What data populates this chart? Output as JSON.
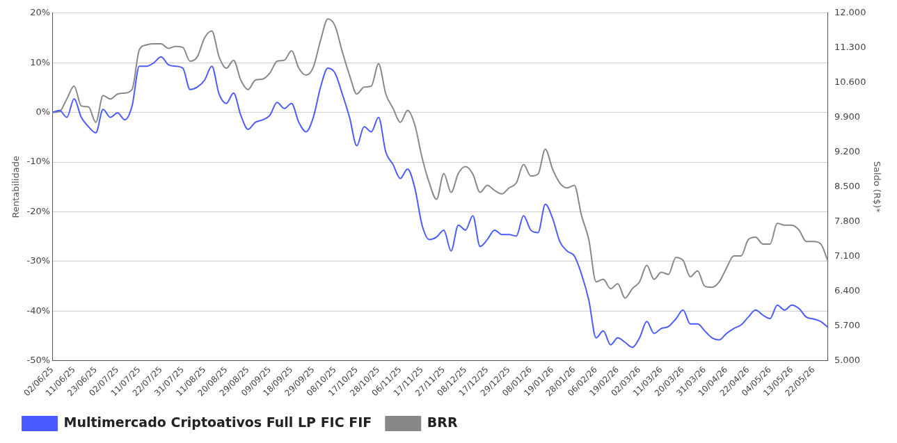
{
  "chart_data": {
    "type": "line",
    "categories": [
      "02/06/25",
      null,
      null,
      "11/06/25",
      null,
      null,
      "23/06/25",
      null,
      null,
      "02/07/25",
      null,
      null,
      "11/07/25",
      null,
      null,
      "22/07/25",
      null,
      null,
      "31/07/25",
      null,
      null,
      "11/08/25",
      null,
      null,
      "20/08/25",
      null,
      null,
      "29/08/25",
      null,
      null,
      "09/09/25",
      null,
      null,
      "18/09/25",
      null,
      null,
      "29/09/25",
      null,
      null,
      "08/10/25",
      null,
      null,
      "17/10/25",
      null,
      null,
      "28/10/25",
      null,
      null,
      "06/11/25",
      null,
      null,
      "17/11/25",
      null,
      null,
      "27/11/25",
      null,
      null,
      "08/12/25",
      null,
      null,
      "17/12/25",
      null,
      null,
      "29/12/25",
      null,
      null,
      "08/01/26",
      null,
      null,
      "19/01/26",
      null,
      null,
      "28/01/26",
      null,
      null,
      "06/02/26",
      null,
      null,
      "19/02/26",
      null,
      null,
      "02/03/26",
      null,
      null,
      "11/03/26",
      null,
      null,
      "20/03/26",
      null,
      null,
      "31/03/26",
      null,
      null,
      "10/04/26",
      null,
      null,
      "22/04/26",
      null,
      null,
      "04/05/26",
      null,
      null,
      "13/05/26",
      null,
      null,
      "22/05/26",
      null,
      null
    ],
    "series": [
      {
        "name": "Multimercado Criptoativos Full LP FIC FIF",
        "color": "#4a5cff",
        "values": [
          0,
          0.4,
          -1,
          2.7,
          -1,
          -2.9,
          -4.1,
          0.6,
          -1,
          -0.1,
          -1.5,
          1.3,
          9.3,
          9.3,
          10,
          11.2,
          9.6,
          9.3,
          8.9,
          4.6,
          5.1,
          6.5,
          9.3,
          3.7,
          1.8,
          3.9,
          -0.6,
          -3.4,
          -2,
          -1.5,
          -0.6,
          2,
          0.8,
          1.8,
          -2,
          -3.9,
          -1,
          5.1,
          8.9,
          7.9,
          3.7,
          -1,
          -6.7,
          -2.9,
          -3.9,
          -1,
          -8,
          -10.5,
          -13.3,
          -11.4,
          -15.2,
          -22.7,
          -25.6,
          -25.1,
          -23.7,
          -27.9,
          -22.7,
          -23.7,
          -20.8,
          -27,
          -25.6,
          -23.7,
          -24.6,
          -24.6,
          -24.9,
          -20.8,
          -23.7,
          -24.2,
          -18.5,
          -21.3,
          -26,
          -27.9,
          -28.9,
          -32.6,
          -37.8,
          -45.4,
          -44,
          -46.8,
          -45.4,
          -46.3,
          -47.3,
          -45.4,
          -42.1,
          -44.5,
          -43.5,
          -43.1,
          -41.6,
          -39.8,
          -42.6,
          -42.6,
          -44,
          -45.4,
          -45.8,
          -44.5,
          -43.5,
          -42.8,
          -41.2,
          -39.8,
          -40.8,
          -41.5,
          -38.8,
          -39.8,
          -38.8,
          -39.5,
          -41.2,
          -41.6,
          -42.1,
          -43.3
        ]
      },
      {
        "name": "BRR",
        "color": "#888888",
        "values": [
          0,
          0.2,
          2.7,
          5.3,
          1.3,
          1.1,
          -2,
          3.4,
          2.7,
          3.7,
          3.9,
          4.6,
          12.6,
          13.6,
          13.8,
          13.8,
          12.9,
          13.3,
          13.1,
          10.3,
          11.2,
          15,
          16.4,
          11.2,
          8.9,
          10.5,
          6.5,
          4.6,
          6.5,
          6.7,
          7.9,
          10.3,
          10.5,
          12.4,
          8.9,
          7.5,
          9.1,
          14.5,
          18.8,
          17.4,
          12.2,
          7.5,
          3.7,
          5.1,
          5.3,
          9.8,
          3.7,
          0.8,
          -2,
          0.4,
          -2.5,
          -9.1,
          -14.2,
          -17.5,
          -12.3,
          -16.1,
          -12.3,
          -10.9,
          -12.4,
          -16.1,
          -14.7,
          -15.7,
          -16.4,
          -15.2,
          -14.2,
          -10.5,
          -12.8,
          -12.4,
          -7.4,
          -11.4,
          -14.2,
          -15.2,
          -14.7,
          -20.8,
          -25.6,
          -34.1,
          -33.6,
          -35.5,
          -34.5,
          -37.4,
          -35.5,
          -34.1,
          -30.8,
          -33.6,
          -32.2,
          -32.6,
          -29.2,
          -29.8,
          -33.1,
          -31.9,
          -35,
          -35.2,
          -34.1,
          -31.3,
          -28.9,
          -28.9,
          -25.6,
          -25.1,
          -26.5,
          -26.5,
          -22.3,
          -22.7,
          -22.7,
          -23.7,
          -26,
          -26,
          -26.5,
          -30
        ]
      }
    ],
    "ylabel": "Rentabilidade",
    "y2label": "Saldo (R$)*",
    "ylim": [
      -50,
      20
    ],
    "yticks": [
      {
        "value": -50,
        "label": "-50%"
      },
      {
        "value": -40,
        "label": "-40%"
      },
      {
        "value": -30,
        "label": "-30%"
      },
      {
        "value": -20,
        "label": "-20%"
      },
      {
        "value": -10,
        "label": "-10%"
      },
      {
        "value": 0,
        "label": "0%"
      },
      {
        "value": 10,
        "label": "10%"
      },
      {
        "value": 20,
        "label": "20%"
      }
    ],
    "y2lim": [
      5000,
      12000
    ],
    "y2ticks": [
      {
        "value": 5000,
        "label": "5.000"
      },
      {
        "value": 5700,
        "label": "5.700"
      },
      {
        "value": 6400,
        "label": "6.400"
      },
      {
        "value": 7100,
        "label": "7.100"
      },
      {
        "value": 7800,
        "label": "7.800"
      },
      {
        "value": 8500,
        "label": "8.500"
      },
      {
        "value": 9200,
        "label": "9.200"
      },
      {
        "value": 9900,
        "label": "9.900"
      },
      {
        "value": 10600,
        "label": "10.600"
      },
      {
        "value": 11300,
        "label": "11.300"
      },
      {
        "value": 12000,
        "label": "12.000"
      }
    ],
    "grid": "y",
    "legend": "bottom",
    "marker": "none",
    "line_style": "solid"
  }
}
